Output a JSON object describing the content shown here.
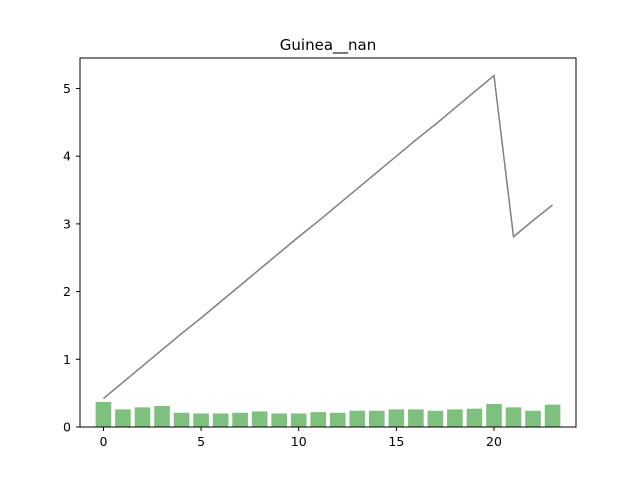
{
  "chart_data": {
    "type": "bar+line",
    "title": "Guinea__nan",
    "xlabel": "",
    "ylabel": "",
    "x": [
      0,
      1,
      2,
      3,
      4,
      5,
      6,
      7,
      8,
      9,
      10,
      11,
      12,
      13,
      14,
      15,
      16,
      17,
      18,
      19,
      20,
      21,
      22,
      23
    ],
    "series": [
      {
        "type": "bar",
        "color": "#7fbf7f",
        "values": [
          0.37,
          0.26,
          0.29,
          0.31,
          0.21,
          0.2,
          0.2,
          0.21,
          0.23,
          0.2,
          0.2,
          0.22,
          0.21,
          0.24,
          0.24,
          0.26,
          0.26,
          0.24,
          0.26,
          0.27,
          0.34,
          0.29,
          0.24,
          0.33
        ]
      },
      {
        "type": "line",
        "color": "#808080",
        "values": [
          0.42,
          0.66,
          0.9,
          1.14,
          1.38,
          1.61,
          1.85,
          2.09,
          2.33,
          2.57,
          2.81,
          3.04,
          3.28,
          3.52,
          3.76,
          4.0,
          4.24,
          4.47,
          4.71,
          4.95,
          5.19,
          2.81,
          3.05,
          3.28
        ]
      }
    ],
    "xlim": [
      -1.2,
      24.2
    ],
    "ylim": [
      0,
      5.45
    ],
    "xticks": [
      0,
      5,
      10,
      15,
      20
    ],
    "yticks": [
      0,
      1,
      2,
      3,
      4,
      5
    ],
    "grid": false,
    "legend": "none"
  }
}
